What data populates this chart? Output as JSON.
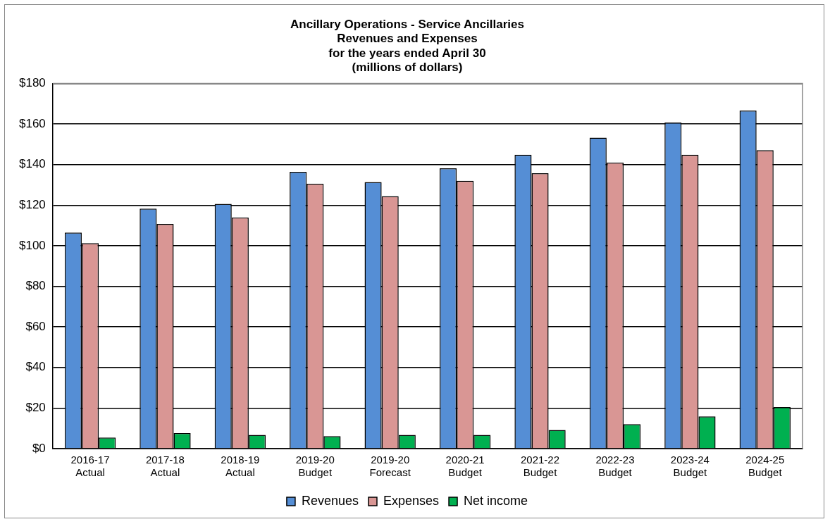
{
  "chart_data": {
    "type": "bar",
    "title": [
      "Ancillary Operations - Service Ancillaries",
      "Revenues and Expenses",
      "for the years ended April 30",
      "(millions of dollars)"
    ],
    "categories": [
      [
        "2016-17",
        "Actual"
      ],
      [
        "2017-18",
        "Actual"
      ],
      [
        "2018-19",
        "Actual"
      ],
      [
        "2019-20",
        "Budget"
      ],
      [
        "2019-20",
        "Forecast"
      ],
      [
        "2020-21",
        "Budget"
      ],
      [
        "2021-22",
        "Budget"
      ],
      [
        "2022-23",
        "Budget"
      ],
      [
        "2023-24",
        "Budget"
      ],
      [
        "2024-25",
        "Budget"
      ]
    ],
    "series": [
      {
        "name": "Revenues",
        "color": "#558ed5",
        "values": [
          106.5,
          118.3,
          120.7,
          136.5,
          131.4,
          138.2,
          144.9,
          153.3,
          160.8,
          166.7
        ]
      },
      {
        "name": "Expenses",
        "color": "#d99694",
        "values": [
          101.3,
          110.8,
          114,
          130.6,
          124.5,
          132,
          135.8,
          141.1,
          144.9,
          147.1
        ]
      },
      {
        "name": "Net income",
        "color": "#00b050",
        "values": [
          5.5,
          7.6,
          6.8,
          6.2,
          6.8,
          6.8,
          9.2,
          12.1,
          15.9,
          20.5
        ]
      }
    ],
    "ylim": [
      0,
      180
    ],
    "yticks": [
      {
        "value": 0,
        "label": "$0"
      },
      {
        "value": 20,
        "label": "$20"
      },
      {
        "value": 40,
        "label": "$40"
      },
      {
        "value": 60,
        "label": "$60"
      },
      {
        "value": 80,
        "label": "$80"
      },
      {
        "value": 100,
        "label": "$100"
      },
      {
        "value": 120,
        "label": "$120"
      },
      {
        "value": 140,
        "label": "$140"
      },
      {
        "value": 160,
        "label": "$160"
      },
      {
        "value": 180,
        "label": "$180"
      }
    ],
    "grid": "y",
    "legend": "bottom"
  }
}
